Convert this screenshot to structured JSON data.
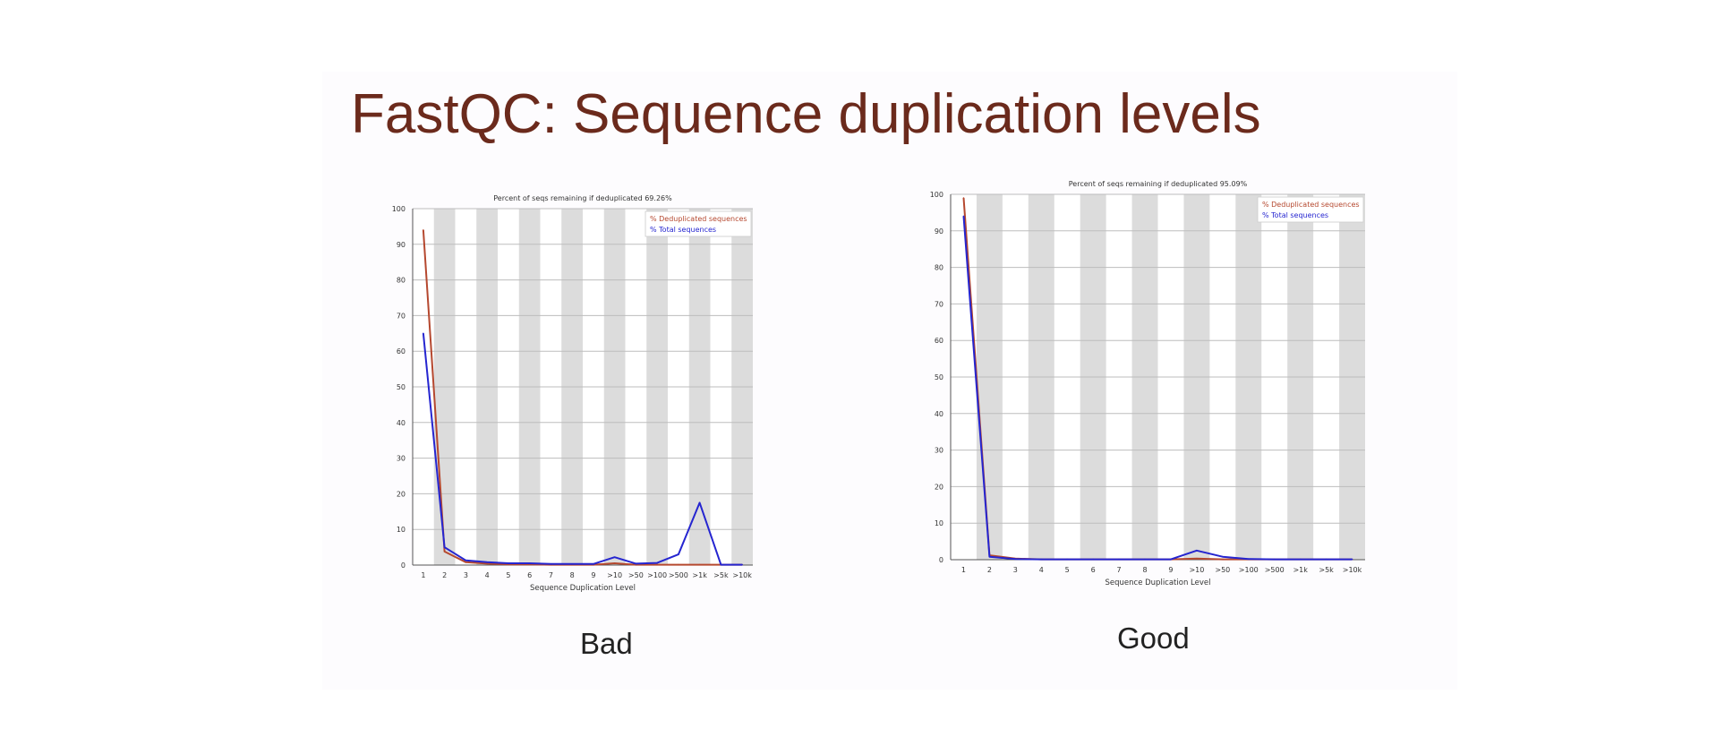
{
  "slide": {
    "title": "FastQC: Sequence duplication levels",
    "captions": [
      "Bad",
      "Good"
    ]
  },
  "colors": {
    "title": "#6b2a1c",
    "deduplicated": "#b5482f",
    "total": "#2525d0",
    "band": "#dcdcdc",
    "grid": "#bdbdbd"
  },
  "chart_data": [
    {
      "type": "line",
      "title": "Percent of seqs remaining if deduplicated 69.26%",
      "xlabel": "Sequence Duplication Level",
      "ylabel": "",
      "ylim": [
        0,
        100
      ],
      "yticks": [
        0,
        10,
        20,
        30,
        40,
        50,
        60,
        70,
        80,
        90,
        100
      ],
      "categories": [
        "1",
        "2",
        "3",
        "4",
        "5",
        "6",
        "7",
        "8",
        "9",
        ">10",
        ">50",
        ">100",
        ">500",
        ">1k",
        ">5k",
        ">10k"
      ],
      "legend_position": "top-right",
      "grid": true,
      "series": [
        {
          "name": "% Deduplicated sequences",
          "color": "#b5482f",
          "values": [
            94,
            3.8,
            0.8,
            0.4,
            0.2,
            0.2,
            0.1,
            0.1,
            0.1,
            0.5,
            0.1,
            0.1,
            0.1,
            0.1,
            0.1,
            0.1
          ]
        },
        {
          "name": "% Total sequences",
          "color": "#2525d0",
          "values": [
            65,
            5,
            1.3,
            0.8,
            0.5,
            0.5,
            0.3,
            0.3,
            0.3,
            2.2,
            0.4,
            0.6,
            3,
            17.5,
            0.1,
            0.1
          ]
        }
      ]
    },
    {
      "type": "line",
      "title": "Percent of seqs remaining if deduplicated 95.09%",
      "xlabel": "Sequence Duplication Level",
      "ylabel": "",
      "ylim": [
        0,
        100
      ],
      "yticks": [
        0,
        10,
        20,
        30,
        40,
        50,
        60,
        70,
        80,
        90,
        100
      ],
      "categories": [
        "1",
        "2",
        "3",
        "4",
        "5",
        "6",
        "7",
        "8",
        "9",
        ">10",
        ">50",
        ">100",
        ">500",
        ">1k",
        ">5k",
        ">10k"
      ],
      "legend_position": "top-right",
      "grid": true,
      "series": [
        {
          "name": "% Deduplicated sequences",
          "color": "#b5482f",
          "values": [
            99,
            1.2,
            0.3,
            0.1,
            0.1,
            0.1,
            0.1,
            0.1,
            0.1,
            0.3,
            0.1,
            0.1,
            0.1,
            0.1,
            0.1,
            0.1
          ]
        },
        {
          "name": "% Total sequences",
          "color": "#2525d0",
          "values": [
            94,
            0.8,
            0.2,
            0.1,
            0.1,
            0.1,
            0.1,
            0.1,
            0.1,
            2.5,
            0.8,
            0.2,
            0.1,
            0.1,
            0.1,
            0.1
          ]
        }
      ]
    }
  ]
}
